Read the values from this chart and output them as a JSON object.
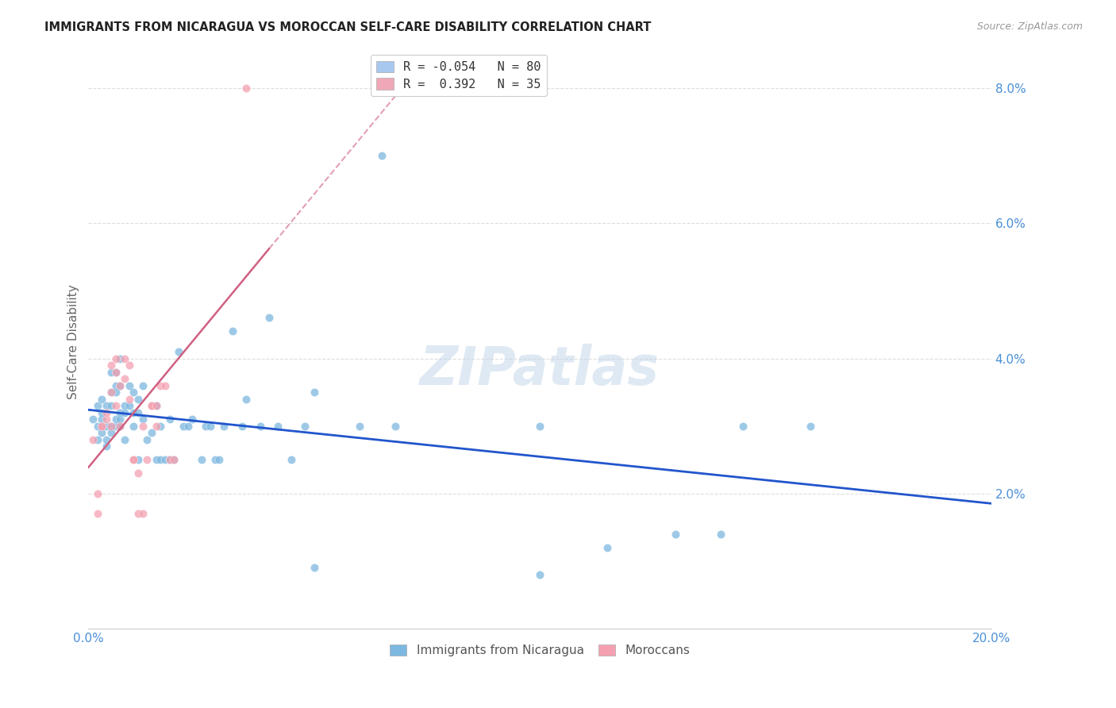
{
  "title": "IMMIGRANTS FROM NICARAGUA VS MOROCCAN SELF-CARE DISABILITY CORRELATION CHART",
  "source": "Source: ZipAtlas.com",
  "ylabel": "Self-Care Disability",
  "xlim": [
    0.0,
    0.2
  ],
  "ylim": [
    0.0,
    0.085
  ],
  "xtick_positions": [
    0.0,
    0.04,
    0.08,
    0.12,
    0.16,
    0.2
  ],
  "xtick_labels": [
    "0.0%",
    "",
    "",
    "",
    "",
    "20.0%"
  ],
  "ytick_positions": [
    0.02,
    0.04,
    0.06,
    0.08
  ],
  "ytick_labels": [
    "2.0%",
    "4.0%",
    "6.0%",
    "8.0%"
  ],
  "background_color": "#ffffff",
  "grid_color": "#dddddd",
  "watermark": "ZIPatlas",
  "legend_label_blue": "R = -0.054   N = 80",
  "legend_label_pink": "R =  0.392   N = 35",
  "legend_color_blue": "#a8c8f0",
  "legend_color_pink": "#f0a8b8",
  "blue_color": "#7db8e0",
  "pink_color": "#f4a0b0",
  "blue_line_color": "#2255cc",
  "pink_line_color": "#d06080",
  "blue_points": [
    [
      0.001,
      0.031
    ],
    [
      0.002,
      0.03
    ],
    [
      0.002,
      0.033
    ],
    [
      0.002,
      0.028
    ],
    [
      0.003,
      0.031
    ],
    [
      0.003,
      0.029
    ],
    [
      0.003,
      0.034
    ],
    [
      0.003,
      0.032
    ],
    [
      0.004,
      0.033
    ],
    [
      0.004,
      0.027
    ],
    [
      0.004,
      0.03
    ],
    [
      0.004,
      0.028
    ],
    [
      0.005,
      0.035
    ],
    [
      0.005,
      0.03
    ],
    [
      0.005,
      0.038
    ],
    [
      0.005,
      0.033
    ],
    [
      0.005,
      0.029
    ],
    [
      0.006,
      0.036
    ],
    [
      0.006,
      0.03
    ],
    [
      0.006,
      0.031
    ],
    [
      0.006,
      0.038
    ],
    [
      0.006,
      0.035
    ],
    [
      0.007,
      0.03
    ],
    [
      0.007,
      0.031
    ],
    [
      0.007,
      0.036
    ],
    [
      0.007,
      0.04
    ],
    [
      0.007,
      0.032
    ],
    [
      0.008,
      0.032
    ],
    [
      0.008,
      0.033
    ],
    [
      0.008,
      0.028
    ],
    [
      0.009,
      0.036
    ],
    [
      0.009,
      0.033
    ],
    [
      0.01,
      0.035
    ],
    [
      0.01,
      0.032
    ],
    [
      0.01,
      0.03
    ],
    [
      0.011,
      0.034
    ],
    [
      0.011,
      0.032
    ],
    [
      0.011,
      0.025
    ],
    [
      0.012,
      0.031
    ],
    [
      0.012,
      0.036
    ],
    [
      0.013,
      0.028
    ],
    [
      0.014,
      0.029
    ],
    [
      0.015,
      0.033
    ],
    [
      0.015,
      0.025
    ],
    [
      0.016,
      0.025
    ],
    [
      0.016,
      0.03
    ],
    [
      0.017,
      0.025
    ],
    [
      0.018,
      0.031
    ],
    [
      0.018,
      0.025
    ],
    [
      0.019,
      0.025
    ],
    [
      0.02,
      0.041
    ],
    [
      0.021,
      0.03
    ],
    [
      0.022,
      0.03
    ],
    [
      0.023,
      0.031
    ],
    [
      0.025,
      0.025
    ],
    [
      0.026,
      0.03
    ],
    [
      0.027,
      0.03
    ],
    [
      0.028,
      0.025
    ],
    [
      0.029,
      0.025
    ],
    [
      0.03,
      0.03
    ],
    [
      0.032,
      0.044
    ],
    [
      0.034,
      0.03
    ],
    [
      0.035,
      0.034
    ],
    [
      0.038,
      0.03
    ],
    [
      0.04,
      0.046
    ],
    [
      0.042,
      0.03
    ],
    [
      0.045,
      0.025
    ],
    [
      0.048,
      0.03
    ],
    [
      0.05,
      0.035
    ],
    [
      0.06,
      0.03
    ],
    [
      0.065,
      0.07
    ],
    [
      0.068,
      0.03
    ],
    [
      0.1,
      0.03
    ],
    [
      0.115,
      0.012
    ],
    [
      0.13,
      0.014
    ],
    [
      0.145,
      0.03
    ],
    [
      0.16,
      0.03
    ],
    [
      0.1,
      0.008
    ],
    [
      0.14,
      0.014
    ],
    [
      0.05,
      0.009
    ]
  ],
  "pink_points": [
    [
      0.001,
      0.028
    ],
    [
      0.002,
      0.02
    ],
    [
      0.002,
      0.017
    ],
    [
      0.003,
      0.03
    ],
    [
      0.003,
      0.03
    ],
    [
      0.004,
      0.031
    ],
    [
      0.004,
      0.032
    ],
    [
      0.005,
      0.03
    ],
    [
      0.005,
      0.035
    ],
    [
      0.005,
      0.039
    ],
    [
      0.006,
      0.033
    ],
    [
      0.006,
      0.04
    ],
    [
      0.006,
      0.038
    ],
    [
      0.007,
      0.036
    ],
    [
      0.007,
      0.03
    ],
    [
      0.008,
      0.037
    ],
    [
      0.008,
      0.04
    ],
    [
      0.009,
      0.039
    ],
    [
      0.009,
      0.034
    ],
    [
      0.01,
      0.025
    ],
    [
      0.01,
      0.025
    ],
    [
      0.011,
      0.017
    ],
    [
      0.011,
      0.023
    ],
    [
      0.012,
      0.017
    ],
    [
      0.012,
      0.03
    ],
    [
      0.013,
      0.025
    ],
    [
      0.014,
      0.033
    ],
    [
      0.014,
      0.033
    ],
    [
      0.015,
      0.03
    ],
    [
      0.015,
      0.033
    ],
    [
      0.016,
      0.036
    ],
    [
      0.017,
      0.036
    ],
    [
      0.018,
      0.025
    ],
    [
      0.019,
      0.025
    ],
    [
      0.035,
      0.08
    ]
  ]
}
